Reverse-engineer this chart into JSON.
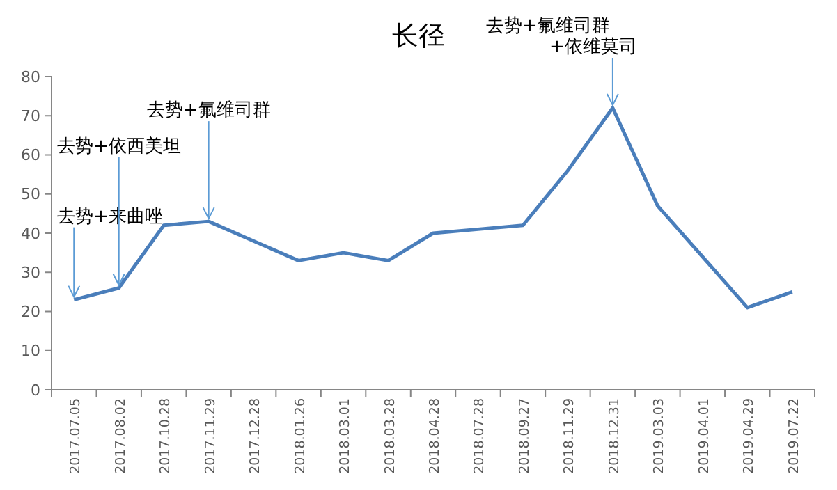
{
  "chart_data": {
    "type": "line",
    "title": "长径",
    "categories": [
      "2017.07.05",
      "2017.08.02",
      "2017.10.28",
      "2017.11.29",
      "2017.12.28",
      "2018.01.26",
      "2018.03.01",
      "2018.03.28",
      "2018.04.28",
      "2018.07.28",
      "2018.09.27",
      "2018.11.29",
      "2018.12.31",
      "2019.03.03",
      "2019.04.01",
      "2019.04.29",
      "2019.07.22"
    ],
    "series": [
      {
        "color": "#4a7ebb",
        "values": [
          23,
          26,
          42,
          43,
          38,
          33,
          35,
          33,
          40,
          41,
          42,
          56,
          72,
          47,
          34,
          21,
          25
        ]
      }
    ],
    "ylim": [
      0,
      80
    ],
    "yticks": [
      0,
      10,
      20,
      30,
      40,
      50,
      60,
      70,
      80
    ],
    "grid": false,
    "marker": "none",
    "line_style": "solid",
    "annotations": [
      {
        "text": "去势+来曲唑",
        "x": "2017.07.05",
        "y": 23
      },
      {
        "text": "去势+依西美坦",
        "x": "2017.08.02",
        "y": 26
      },
      {
        "text": "去势+氟维司群",
        "x": "2017.11.29",
        "y": 43
      },
      {
        "text": "去势+氟维司群\n+依维莫司",
        "x": "2018.12.31",
        "y": 72
      }
    ]
  }
}
